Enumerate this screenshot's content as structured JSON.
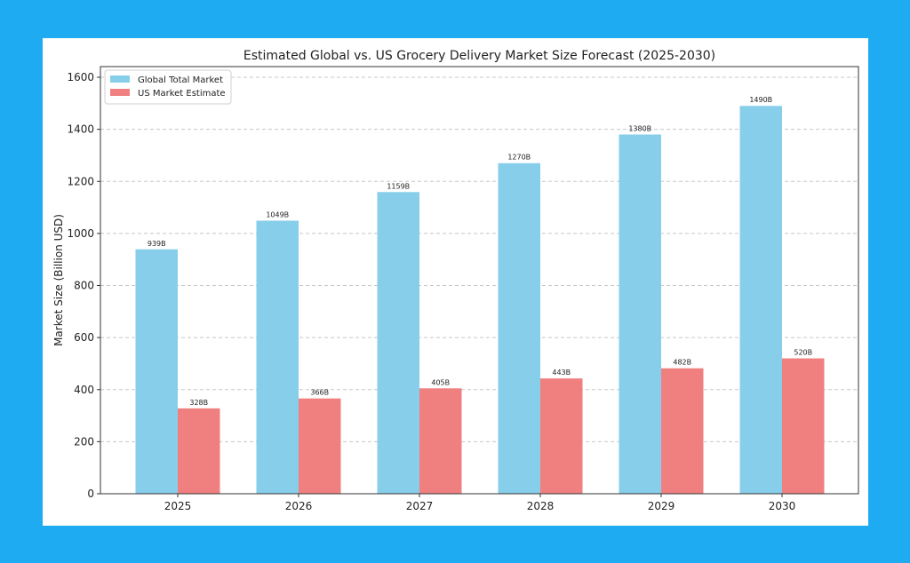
{
  "chart_data": {
    "type": "bar",
    "title": "Estimated Global vs. US Grocery Delivery Market Size Forecast (2025-2030)",
    "xlabel": "",
    "ylabel": "Market Size (Billion USD)",
    "categories": [
      "2025",
      "2026",
      "2027",
      "2028",
      "2029",
      "2030"
    ],
    "series": [
      {
        "name": "Global Total Market",
        "color": "#87ceeb",
        "values": [
          939,
          1049,
          1159,
          1270,
          1380,
          1490
        ],
        "labels": [
          "939B",
          "1049B",
          "1159B",
          "1270B",
          "1380B",
          "1490B"
        ]
      },
      {
        "name": "US Market Estimate",
        "color": "#f08080",
        "values": [
          328,
          366,
          405,
          443,
          482,
          520
        ],
        "labels": [
          "328B",
          "366B",
          "405B",
          "443B",
          "482B",
          "520B"
        ]
      }
    ],
    "ylim": [
      0,
      1600
    ],
    "yticks": [
      "0",
      "200",
      "400",
      "600",
      "800",
      "1000",
      "1200",
      "1400",
      "1600"
    ],
    "grid": "y-dashed",
    "legend": "top-left"
  },
  "colors": {
    "background": "#1eabf1",
    "card": "#ffffff"
  }
}
